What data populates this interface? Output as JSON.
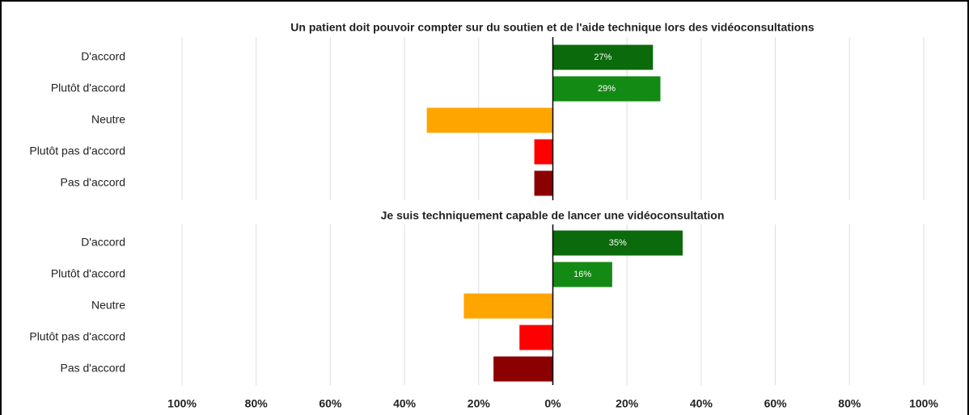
{
  "chart_data": [
    {
      "type": "bar",
      "orientation": "horizontal",
      "title": "Un patient doit pouvoir compter sur du soutien et de l'aide technique lors des vidéoconsultations",
      "categories": [
        "D'accord",
        "Plutôt d'accord",
        "Neutre",
        "Plutôt pas d'accord",
        "Pas d'accord"
      ],
      "values": [
        27,
        29,
        -34,
        -5,
        -5
      ],
      "value_labels": [
        "27%",
        "29%",
        null,
        null,
        null
      ],
      "colors": [
        "#0b6a0b",
        "#138a13",
        "#ffa500",
        "#ff0000",
        "#8b0000"
      ],
      "xlim": [
        -100,
        100
      ],
      "grid": true
    },
    {
      "type": "bar",
      "orientation": "horizontal",
      "title": "Je suis techniquement capable de lancer une vidéoconsultation",
      "categories": [
        "D'accord",
        "Plutôt d'accord",
        "Neutre",
        "Plutôt pas d'accord",
        "Pas d'accord"
      ],
      "values": [
        35,
        16,
        -24,
        -9,
        -16
      ],
      "value_labels": [
        "35%",
        "16%",
        null,
        null,
        null
      ],
      "colors": [
        "#0b6a0b",
        "#138a13",
        "#ffa500",
        "#ff0000",
        "#8b0000"
      ],
      "xlim": [
        -100,
        100
      ],
      "grid": true,
      "xticks": [
        {
          "value": -100,
          "label": "100%"
        },
        {
          "value": -80,
          "label": "80%"
        },
        {
          "value": -60,
          "label": "60%"
        },
        {
          "value": -40,
          "label": "40%"
        },
        {
          "value": -20,
          "label": "20%"
        },
        {
          "value": 0,
          "label": "0%"
        },
        {
          "value": 20,
          "label": "20%"
        },
        {
          "value": 40,
          "label": "40%"
        },
        {
          "value": 60,
          "label": "60%"
        },
        {
          "value": 80,
          "label": "80%"
        },
        {
          "value": 100,
          "label": "100%"
        }
      ]
    }
  ]
}
